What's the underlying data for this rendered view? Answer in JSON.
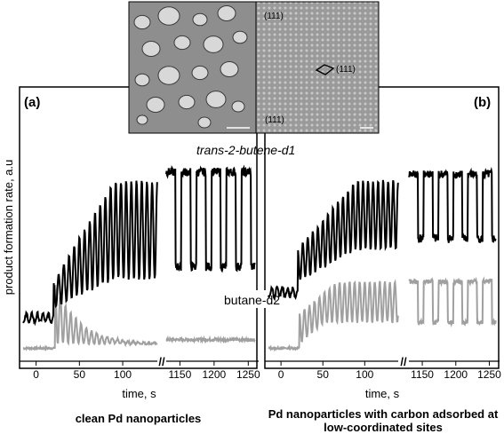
{
  "figure": {
    "inset": {
      "facet_label_1": "(111)",
      "facet_label_2": "(111)",
      "facet_label_3": "(111)"
    },
    "ylabel": "product formation rate, a.u",
    "trace_label_1": "trans-2-butene-d1",
    "trace_label_2": "butane-d2"
  },
  "chart_data": [
    {
      "type": "line",
      "panel_label": "(a)",
      "caption": "clean Pd nanoparticles",
      "xlabel": "time, s",
      "x_ticks_left": [
        0,
        50,
        100
      ],
      "x_ticks_right": [
        1150,
        1200,
        1250
      ],
      "axis_break": "//",
      "xlim_left": [
        -15,
        140
      ],
      "xlim_right": [
        1130,
        1260
      ],
      "series": [
        {
          "name": "trans-2-butene-d1",
          "color": "#000000",
          "baseline_before_pulses": 0.18,
          "pulse_count_left": 20,
          "pulse_count_right": 5,
          "pulse_peak_range": [
            0.35,
            0.82
          ],
          "pulse_peak_right": 0.86
        },
        {
          "name": "butane-d2",
          "color": "#a0a0a0",
          "baseline": 0.04,
          "first_peak": 0.28,
          "pulse_count_left": 20,
          "decays_to": 0.06,
          "right_level": 0.08
        }
      ]
    },
    {
      "type": "line",
      "panel_label": "(b)",
      "caption": "Pd nanoparticles with carbon adsorbed at low-coordinated sites",
      "xlabel": "time, s",
      "x_ticks_left": [
        0,
        50,
        100
      ],
      "x_ticks_right": [
        1150,
        1200,
        1250
      ],
      "axis_break": "//",
      "xlim_left": [
        -15,
        140
      ],
      "xlim_right": [
        1130,
        1260
      ],
      "series": [
        {
          "name": "trans-2-butene-d1",
          "color": "#000000",
          "baseline_before_pulses": 0.3,
          "pulse_count_left": 20,
          "pulse_count_right": 5,
          "pulse_peak_range": [
            0.5,
            0.82
          ],
          "pulse_peak_right": 0.85
        },
        {
          "name": "butane-d2",
          "color": "#a0a0a0",
          "baseline": 0.04,
          "pulse_count_left": 20,
          "pulse_peak_range": [
            0.2,
            0.35
          ],
          "pulse_peak_right": 0.35
        }
      ]
    }
  ]
}
